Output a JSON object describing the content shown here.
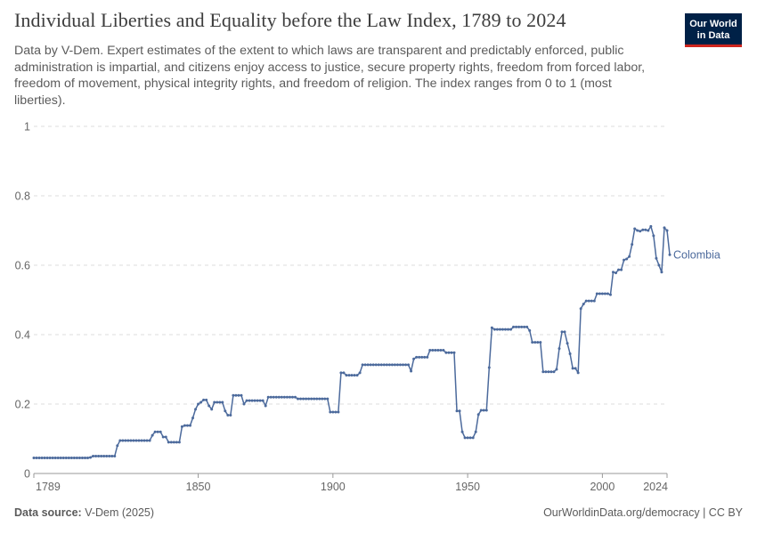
{
  "header": {
    "title": "Individual Liberties and Equality before the Law Index, 1789 to 2024",
    "subtitle": "Data by V-Dem. Expert estimates of the extent to which laws are transparent and predictably enforced, public administration is impartial, and citizens enjoy access to justice, secure property rights, freedom from forced labor, freedom of movement, physical integrity rights, and freedom of religion. The index ranges from 0 to 1 (most liberties).",
    "logo_line1": "Our World",
    "logo_line2": "in Data"
  },
  "footer": {
    "source_label": "Data source:",
    "source_value": "V-Dem (2025)",
    "credit": "OurWorldinData.org/democracy | CC BY"
  },
  "colors": {
    "series": "#4c6a9c",
    "grid": "#dddddd",
    "axis": "#999999",
    "tick_text": "#666666"
  },
  "chart_data": {
    "type": "line",
    "xlim": [
      1789,
      2024
    ],
    "ylim": [
      0,
      1
    ],
    "x_ticks": [
      {
        "value": 1789,
        "label": "1789"
      },
      {
        "value": 1850,
        "label": "1850"
      },
      {
        "value": 1900,
        "label": "1900"
      },
      {
        "value": 1950,
        "label": "1950"
      },
      {
        "value": 2000,
        "label": "2000"
      },
      {
        "value": 2024,
        "label": "2024"
      }
    ],
    "y_ticks": [
      {
        "value": 0,
        "label": "0"
      },
      {
        "value": 0.2,
        "label": "0.2"
      },
      {
        "value": 0.4,
        "label": "0.4"
      },
      {
        "value": 0.6,
        "label": "0.6"
      },
      {
        "value": 0.8,
        "label": "0.8"
      },
      {
        "value": 1,
        "label": "1"
      }
    ],
    "grid": true,
    "series": [
      {
        "name": "Colombia",
        "segments": [
          [
            1789,
            1809,
            0.045
          ],
          [
            1810,
            1810,
            0.046
          ],
          [
            1811,
            1819,
            0.05
          ],
          [
            1820,
            1820,
            0.08
          ],
          [
            1821,
            1832,
            0.095
          ],
          [
            1833,
            1833,
            0.11
          ],
          [
            1834,
            1836,
            0.12
          ],
          [
            1837,
            1838,
            0.105
          ],
          [
            1839,
            1843,
            0.09
          ],
          [
            1844,
            1844,
            0.135
          ],
          [
            1845,
            1847,
            0.138
          ],
          [
            1848,
            1848,
            0.16
          ],
          [
            1849,
            1849,
            0.185
          ],
          [
            1850,
            1850,
            0.2
          ],
          [
            1851,
            1851,
            0.205
          ],
          [
            1852,
            1853,
            0.212
          ],
          [
            1854,
            1854,
            0.195
          ],
          [
            1855,
            1855,
            0.185
          ],
          [
            1856,
            1859,
            0.205
          ],
          [
            1860,
            1860,
            0.18
          ],
          [
            1861,
            1862,
            0.168
          ],
          [
            1863,
            1866,
            0.225
          ],
          [
            1867,
            1867,
            0.2
          ],
          [
            1868,
            1874,
            0.21
          ],
          [
            1875,
            1875,
            0.195
          ],
          [
            1876,
            1886,
            0.22
          ],
          [
            1887,
            1898,
            0.215
          ],
          [
            1899,
            1902,
            0.177
          ],
          [
            1903,
            1904,
            0.29
          ],
          [
            1905,
            1909,
            0.283
          ],
          [
            1910,
            1910,
            0.29
          ],
          [
            1911,
            1928,
            0.313
          ],
          [
            1929,
            1929,
            0.295
          ],
          [
            1930,
            1930,
            0.33
          ],
          [
            1931,
            1935,
            0.335
          ],
          [
            1936,
            1941,
            0.355
          ],
          [
            1942,
            1945,
            0.348
          ],
          [
            1946,
            1947,
            0.18
          ],
          [
            1948,
            1948,
            0.12
          ],
          [
            1949,
            1952,
            0.103
          ],
          [
            1953,
            1953,
            0.12
          ],
          [
            1954,
            1954,
            0.17
          ],
          [
            1955,
            1957,
            0.182
          ],
          [
            1958,
            1958,
            0.305
          ],
          [
            1959,
            1959,
            0.42
          ],
          [
            1960,
            1966,
            0.415
          ],
          [
            1967,
            1972,
            0.422
          ],
          [
            1973,
            1973,
            0.412
          ],
          [
            1974,
            1977,
            0.378
          ],
          [
            1978,
            1982,
            0.293
          ],
          [
            1983,
            1983,
            0.3
          ],
          [
            1984,
            1984,
            0.36
          ],
          [
            1985,
            1986,
            0.408
          ],
          [
            1987,
            1987,
            0.375
          ],
          [
            1988,
            1988,
            0.345
          ],
          [
            1989,
            1990,
            0.303
          ],
          [
            1991,
            1991,
            0.29
          ],
          [
            1992,
            1992,
            0.475
          ],
          [
            1993,
            1993,
            0.488
          ],
          [
            1994,
            1997,
            0.497
          ],
          [
            1998,
            2002,
            0.518
          ],
          [
            2003,
            2003,
            0.515
          ],
          [
            2004,
            2004,
            0.58
          ],
          [
            2005,
            2005,
            0.578
          ],
          [
            2006,
            2007,
            0.587
          ],
          [
            2008,
            2008,
            0.615
          ],
          [
            2009,
            2009,
            0.618
          ],
          [
            2010,
            2010,
            0.625
          ],
          [
            2011,
            2011,
            0.66
          ],
          [
            2012,
            2012,
            0.705
          ],
          [
            2013,
            2013,
            0.7
          ],
          [
            2014,
            2014,
            0.698
          ],
          [
            2015,
            2016,
            0.702
          ],
          [
            2017,
            2017,
            0.7
          ],
          [
            2018,
            2018,
            0.712
          ],
          [
            2019,
            2019,
            0.685
          ],
          [
            2020,
            2020,
            0.62
          ],
          [
            2021,
            2021,
            0.6
          ],
          [
            2022,
            2022,
            0.58
          ],
          [
            2023,
            2023,
            0.708
          ],
          [
            2024,
            2024,
            0.7
          ],
          [
            2025,
            2025,
            0.63
          ]
        ]
      }
    ]
  }
}
